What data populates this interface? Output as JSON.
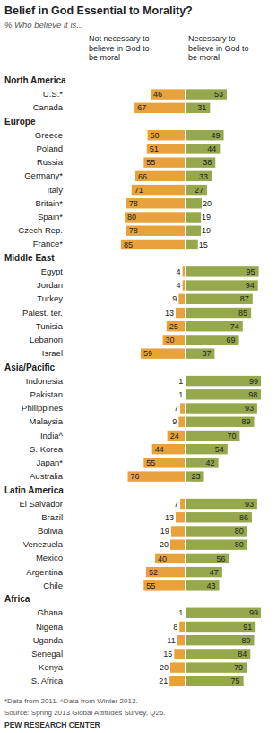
{
  "chart_data": {
    "type": "bar",
    "title": "Belief in God Essential to Morality?",
    "subtitle": "% Who believe it is...",
    "orientation": "horizontal",
    "data_labels": true,
    "tick_labels": "y",
    "categories": [
      "North America",
      "U.S.*",
      "Canada",
      "Europe",
      "Greece",
      "Poland",
      "Russia",
      "Germany*",
      "Italy",
      "Britain*",
      "Spain*",
      "Czech Rep.",
      "France*",
      "Middle East",
      "Egypt",
      "Jordan",
      "Turkey",
      "Palest. ter.",
      "Tunisia",
      "Lebanon",
      "Israel",
      "Asia/Pacific",
      "Indonesia",
      "Pakistan",
      "Philippines",
      "Malaysia",
      "India^",
      "S. Korea",
      "Japan*",
      "Australia",
      "Latin America",
      "El Salvador",
      "Brazil",
      "Bolivia",
      "Venezuela",
      "Mexico",
      "Argentina",
      "Chile",
      "Africa",
      "Ghana",
      "Nigeria",
      "Uganda",
      "Senegal",
      "Kenya",
      "S. Africa"
    ],
    "series": [
      {
        "name": "Not necessary to believe in God to be moral",
        "color": "#e9a23b",
        "values": [
          null,
          46,
          67,
          null,
          50,
          51,
          55,
          66,
          71,
          78,
          80,
          78,
          85,
          null,
          4,
          4,
          9,
          13,
          25,
          30,
          59,
          null,
          1,
          1,
          7,
          9,
          24,
          44,
          55,
          76,
          null,
          7,
          13,
          19,
          20,
          40,
          52,
          55,
          null,
          1,
          8,
          11,
          15,
          20,
          21
        ]
      },
      {
        "name": "Necessary to believe in God to be moral",
        "color": "#96a84c",
        "values": [
          null,
          53,
          31,
          null,
          49,
          44,
          38,
          33,
          27,
          20,
          19,
          19,
          15,
          null,
          95,
          94,
          87,
          85,
          74,
          69,
          37,
          null,
          99,
          98,
          93,
          89,
          70,
          54,
          42,
          23,
          null,
          93,
          86,
          80,
          80,
          56,
          47,
          43,
          null,
          99,
          91,
          89,
          84,
          79,
          75
        ]
      }
    ],
    "annotations": [
      "*Data from 2011. ^Data from Winter 2013.",
      "Source: Spring 2013 Global Attitudes Survey, Q26.",
      "PEW RESEARCH CENTER"
    ]
  }
}
